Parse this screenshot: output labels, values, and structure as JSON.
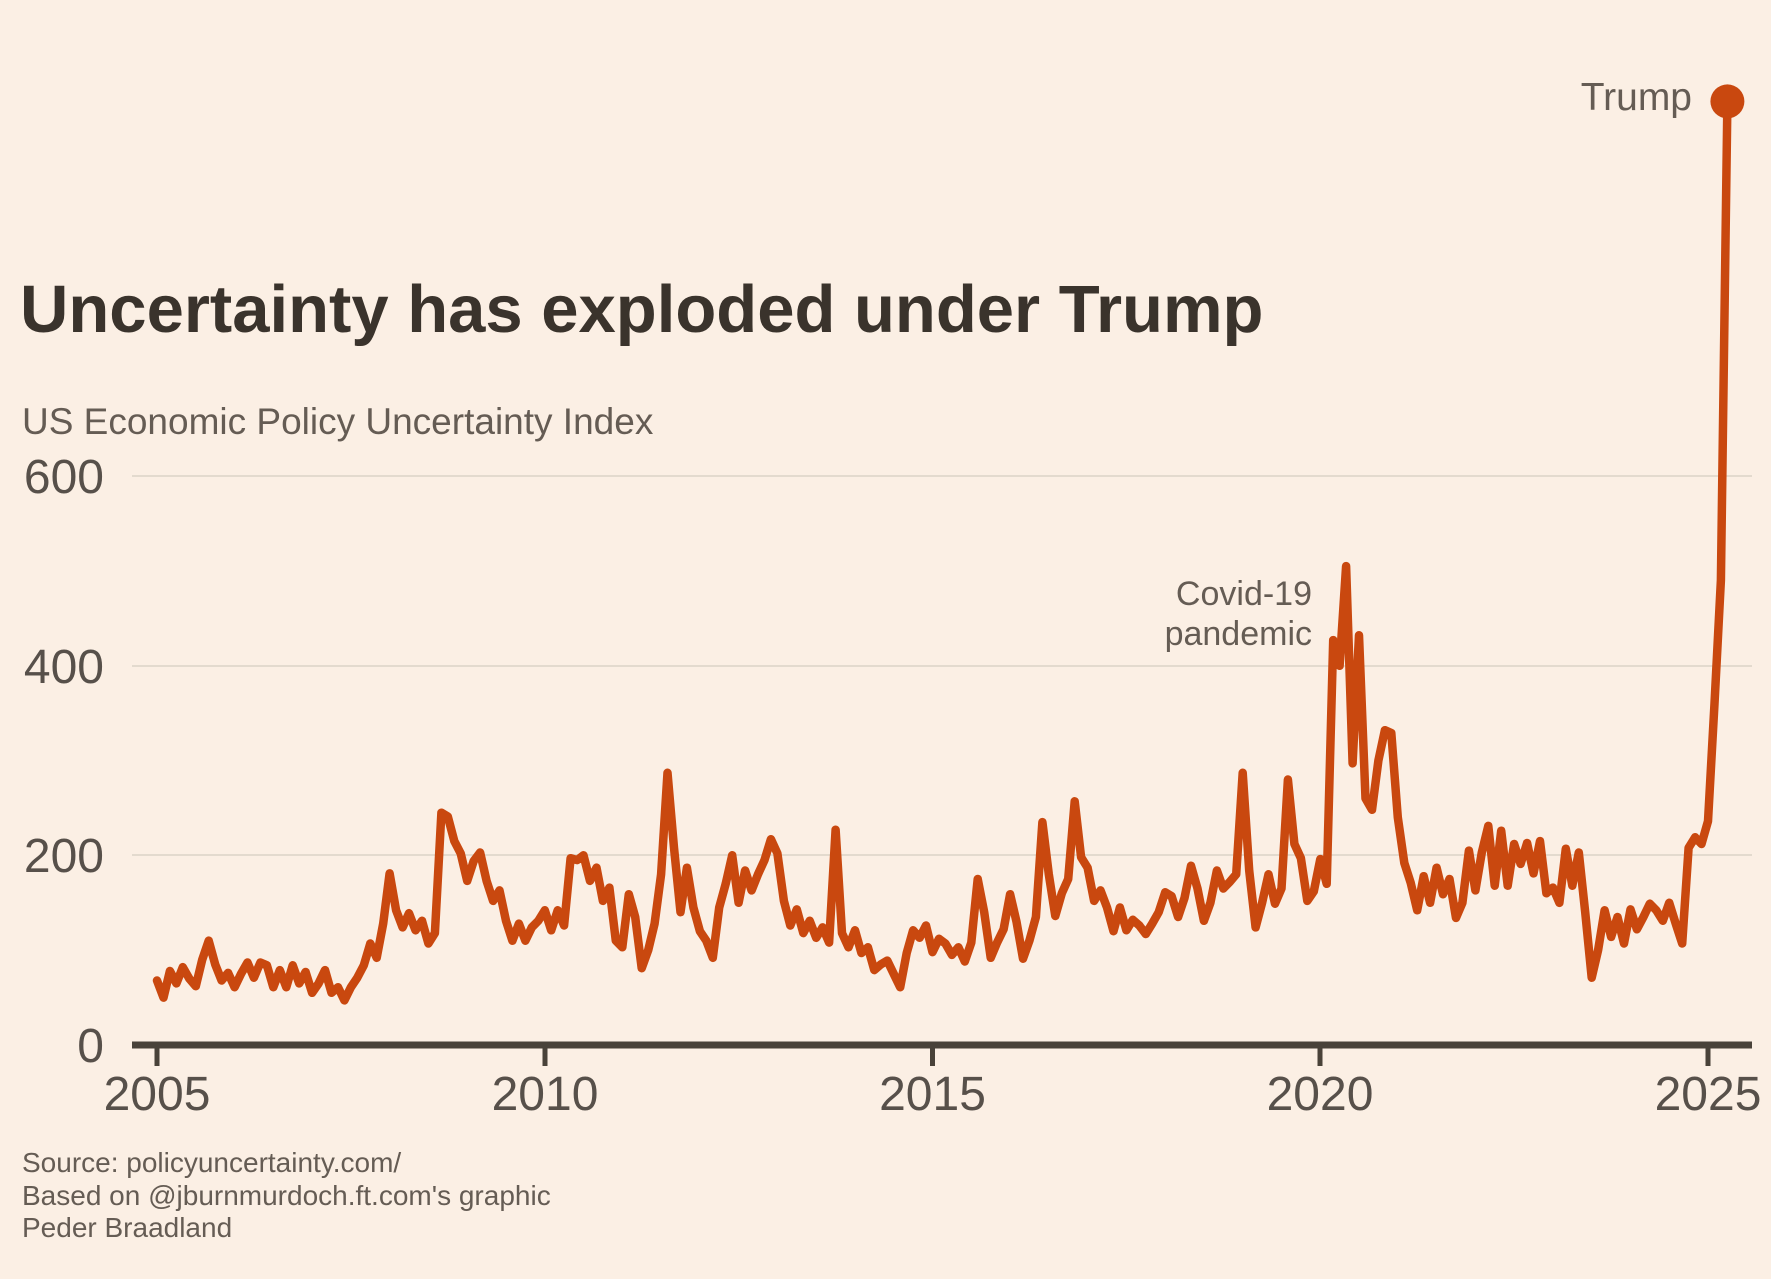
{
  "header": {
    "title": "Uncertainty has exploded under Trump",
    "subtitle": "US Economic Policy Uncertainty Index"
  },
  "annotations": {
    "covid_line1": "Covid-19",
    "covid_line2": "pandemic",
    "trump": "Trump"
  },
  "source": {
    "line1": "Source: policyuncertainty.com/",
    "line2": "Based on @jburnmurdoch.ft.com's graphic",
    "line3": "Peder Braadland"
  },
  "colors": {
    "background": "#FBEFE4",
    "line": "#C9480F",
    "title": "#3A332C",
    "text": "#655C54",
    "labels": "#57504A",
    "axis": "#494239",
    "grid": "#E3DACE"
  },
  "axes": {
    "y_tick_labels": [
      "0",
      "200",
      "400",
      "600"
    ],
    "x_tick_labels": [
      "2005",
      "2010",
      "2015",
      "2020",
      "2025"
    ]
  },
  "chart_data": {
    "type": "line",
    "title": "Uncertainty has exploded under Trump",
    "subtitle": "US Economic Policy Uncertainty Index",
    "xlabel": "",
    "ylabel": "US Economic Policy Uncertainty Index",
    "x_start": "2005-01",
    "x_end": "2025-04",
    "x_frequency": "monthly",
    "xlim": [
      2005,
      2025.9
    ],
    "ylim": [
      0,
      600
    ],
    "y_ticks": [
      0,
      200,
      400,
      600
    ],
    "x_ticks": [
      2005,
      2010,
      2015,
      2020,
      2025
    ],
    "grid": "horizontal",
    "legend": "none",
    "annotations": [
      {
        "text": "Covid-19 pandemic",
        "x": "2020-05",
        "value": 505
      },
      {
        "text": "Trump",
        "x": "2025-04",
        "value": 995,
        "marker": "dot"
      }
    ],
    "values": [
      68,
      50,
      78,
      65,
      82,
      70,
      62,
      90,
      110,
      85,
      68,
      76,
      61,
      75,
      87,
      71,
      87,
      84,
      61,
      79,
      61,
      84,
      65,
      77,
      55,
      65,
      79,
      55,
      61,
      47,
      61,
      71,
      84,
      107,
      92,
      128,
      181,
      142,
      124,
      139,
      121,
      131,
      107,
      118,
      245,
      241,
      215,
      202,
      173,
      194,
      203,
      173,
      152,
      163,
      131,
      110,
      128,
      110,
      124,
      131,
      142,
      121,
      142,
      126,
      197,
      195,
      200,
      173,
      187,
      152,
      166,
      110,
      103,
      159,
      135,
      81,
      100,
      128,
      180,
      287,
      208,
      140,
      187,
      145,
      120,
      110,
      92,
      145,
      170,
      200,
      150,
      184,
      163,
      180,
      195,
      217,
      202,
      152,
      126,
      143,
      118,
      131,
      113,
      124,
      108,
      227,
      118,
      103,
      121,
      97,
      103,
      79,
      85,
      89,
      75,
      61,
      97,
      121,
      113,
      126,
      98,
      112,
      107,
      95,
      103,
      88,
      108,
      175,
      140,
      92,
      108,
      122,
      159,
      130,
      91,
      110,
      135,
      235,
      180,
      136,
      160,
      175,
      257,
      198,
      187,
      152,
      163,
      145,
      120,
      145,
      121,
      132,
      126,
      117,
      128,
      140,
      161,
      157,
      135,
      155,
      189,
      165,
      131,
      150,
      184,
      165,
      172,
      180,
      287,
      184,
      124,
      150,
      180,
      149,
      165,
      280,
      212,
      197,
      152,
      162,
      196,
      170,
      427,
      400,
      505,
      297,
      432,
      260,
      248,
      300,
      332,
      329,
      240,
      192,
      171,
      142,
      178,
      150,
      187,
      159,
      175,
      134,
      150,
      205,
      163,
      203,
      231,
      168,
      226,
      168,
      212,
      191,
      213,
      181,
      215,
      160,
      166,
      150,
      207,
      168,
      203,
      140,
      71,
      100,
      142,
      114,
      135,
      107,
      143,
      122,
      135,
      149,
      142,
      131,
      150,
      128,
      107,
      208,
      219,
      212,
      236,
      360,
      490,
      995
    ]
  }
}
